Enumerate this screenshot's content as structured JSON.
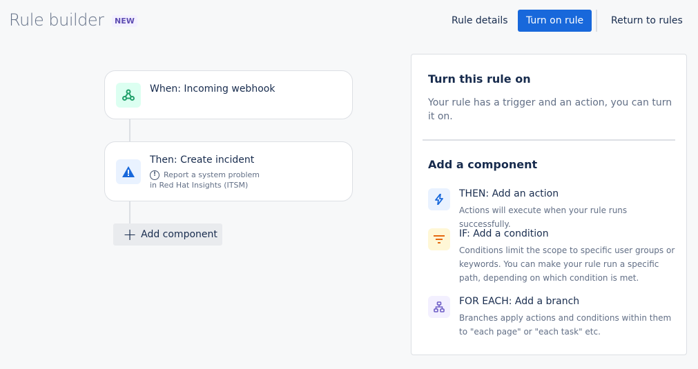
{
  "header": {
    "title": "Rule builder",
    "badge": "NEW",
    "rule_details": "Rule details",
    "turn_on": "Turn on rule",
    "return": "Return to rules"
  },
  "flow": {
    "trigger": {
      "title": "When: Incoming webhook",
      "icon": "webhook-icon"
    },
    "action": {
      "title": "Then: Create incident",
      "desc_line1": "Report a system problem",
      "desc_line2": "in Red Hat Insights (ITSM)",
      "icon": "warning-icon"
    },
    "add_component": "Add component"
  },
  "panel": {
    "heading": "Turn this rule on",
    "text": "Your rule has a trigger and an action, you can turn it on.",
    "add_heading": "Add a component",
    "items": [
      {
        "title": "THEN: Add an action",
        "desc": "Actions will execute when your rule runs successfully.",
        "icon": "lightning-icon"
      },
      {
        "title": "IF: Add a condition",
        "desc": "Conditions limit the scope to specific user groups or keywords. You can make your rule run a specific path, depending on which condition is met.",
        "icon": "filter-icon"
      },
      {
        "title": "FOR EACH: Add a branch",
        "desc": "Branches apply actions and conditions within them to \"each page\" or \"each task\" etc.",
        "icon": "branch-icon"
      }
    ]
  },
  "colors": {
    "primary": "#1868db",
    "green": "#22a06b",
    "orange": "#e56910",
    "purple": "#6e5dc6"
  }
}
